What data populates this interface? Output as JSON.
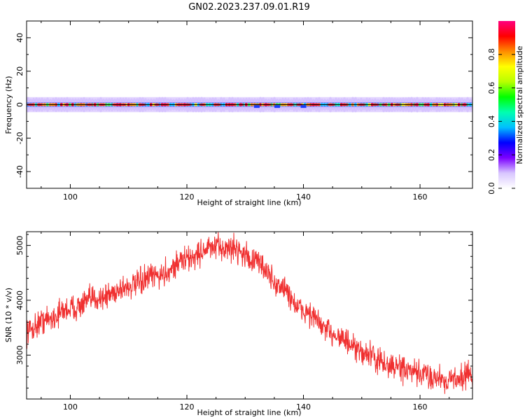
{
  "title": "GN02.2023.237.09.01.R19",
  "chart_data": [
    {
      "type": "heatmap",
      "xlabel": "Height of straight line (km)",
      "ylabel": "Frequency (Hz)",
      "xlim": [
        92.5,
        169
      ],
      "ylim": [
        -50,
        50
      ],
      "xticks": [
        100,
        120,
        140,
        160
      ],
      "yticks": [
        40,
        20,
        0,
        -20,
        -40
      ],
      "colorbar": {
        "label": "Normalized spectral amplitude",
        "range": [
          0,
          1
        ],
        "ticks": [
          "0.0",
          "0.2",
          "0.4",
          "0.6",
          "0.8"
        ],
        "colors": [
          "#ffffff",
          "#d8c6ff",
          "#7b00ff",
          "#0000ff",
          "#00bfff",
          "#00ffb0",
          "#00ff00",
          "#b8ff00",
          "#ffff00",
          "#ff8c00",
          "#ff0000",
          "#ff007f"
        ]
      },
      "band": {
        "center_hz": 0,
        "core_halfwidth_hz": 1.5,
        "halo_halfwidth_hz": 4.5,
        "notches_km": [
          132,
          135.5,
          140
        ]
      }
    },
    {
      "type": "line",
      "xlabel": "Height of straight line (km)",
      "ylabel": "SNR (10 * v/v)",
      "xlim": [
        92.5,
        169
      ],
      "ylim": [
        2200,
        5250
      ],
      "xticks": [
        100,
        120,
        140,
        160
      ],
      "yticks": [
        5000,
        4000,
        3000
      ],
      "color": "#f03030",
      "trend": {
        "x": [
          92.5,
          96,
          100,
          105,
          110,
          115,
          120,
          124,
          128,
          132,
          136,
          140,
          145,
          150,
          155,
          160,
          165,
          169
        ],
        "y": [
          3450,
          3650,
          3850,
          4050,
          4250,
          4450,
          4750,
          4950,
          4950,
          4700,
          4250,
          3800,
          3400,
          3050,
          2800,
          2650,
          2550,
          2650
        ]
      },
      "noise_amplitude": 170,
      "samples": 1400
    }
  ]
}
